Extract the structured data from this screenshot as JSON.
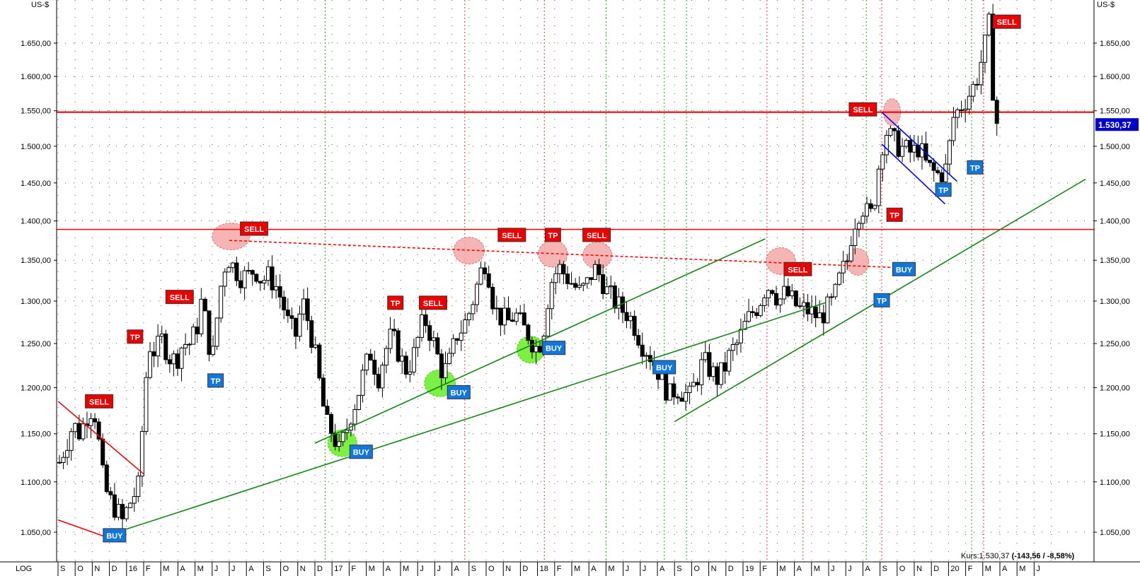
{
  "chart_data": {
    "type": "candlestick",
    "currency_label_left": "US-$",
    "currency_label_right": "US-$",
    "scale_label": "LOG",
    "y_log": true,
    "ylim": [
      1025,
      1700
    ],
    "y_ticks": [
      1050,
      1100,
      1150,
      1200,
      1250,
      1300,
      1350,
      1400,
      1450,
      1500,
      1550,
      1600,
      1650
    ],
    "y_tick_labels": [
      "1.050,00",
      "1.100,00",
      "1.150,00",
      "1.200,00",
      "1.250,00",
      "1.300,00",
      "1.350,00",
      "1.400,00",
      "1.450,00",
      "1.500,00",
      "1.550,00",
      "1.600,00",
      "1.650,00"
    ],
    "x_range_months": [
      0,
      62
    ],
    "months": [
      "S",
      "O",
      "N",
      "D",
      "16",
      "F",
      "M",
      "A",
      "M",
      "J",
      "J",
      "A",
      "S",
      "O",
      "N",
      "D",
      "17",
      "F",
      "M",
      "A",
      "M",
      "J",
      "J",
      "A",
      "S",
      "O",
      "N",
      "D",
      "18",
      "F",
      "M",
      "A",
      "M",
      "J",
      "J",
      "A",
      "S",
      "O",
      "N",
      "D",
      "19",
      "F",
      "M",
      "A",
      "M",
      "J",
      "J",
      "A",
      "S",
      "O",
      "N",
      "D",
      "20",
      "F",
      "M",
      "A",
      "M",
      "J"
    ],
    "month_index": [
      0,
      1,
      2,
      3,
      4,
      5,
      6,
      7,
      8,
      9,
      10,
      11,
      12,
      13,
      14,
      15,
      16,
      17,
      18,
      19,
      20,
      21,
      22,
      23,
      24,
      25,
      26,
      27,
      28,
      29,
      30,
      31,
      32,
      33,
      34,
      35,
      36,
      37,
      38,
      39,
      40,
      41,
      42,
      43,
      44,
      45,
      46,
      47,
      48,
      49,
      50,
      51,
      52,
      53,
      54,
      55,
      56,
      57
    ],
    "price_path": [
      [
        0.0,
        1120
      ],
      [
        0.4,
        1140
      ],
      [
        0.8,
        1160
      ],
      [
        1.2,
        1150
      ],
      [
        1.6,
        1170
      ],
      [
        2.0,
        1180
      ],
      [
        2.3,
        1140
      ],
      [
        2.6,
        1095
      ],
      [
        3.0,
        1080
      ],
      [
        3.4,
        1070
      ],
      [
        3.7,
        1060
      ],
      [
        4.0,
        1075
      ],
      [
        4.3,
        1085
      ],
      [
        4.6,
        1095
      ],
      [
        4.9,
        1170
      ],
      [
        5.2,
        1250
      ],
      [
        5.6,
        1240
      ],
      [
        6.0,
        1255
      ],
      [
        6.4,
        1235
      ],
      [
        6.8,
        1230
      ],
      [
        7.2,
        1250
      ],
      [
        7.6,
        1250
      ],
      [
        8.0,
        1265
      ],
      [
        8.3,
        1300
      ],
      [
        8.6,
        1270
      ],
      [
        8.9,
        1225
      ],
      [
        9.2,
        1280
      ],
      [
        9.5,
        1330
      ],
      [
        9.8,
        1355
      ],
      [
        10.2,
        1340
      ],
      [
        10.6,
        1330
      ],
      [
        11.0,
        1330
      ],
      [
        11.4,
        1340
      ],
      [
        11.8,
        1325
      ],
      [
        12.2,
        1330
      ],
      [
        12.6,
        1320
      ],
      [
        13.0,
        1300
      ],
      [
        13.4,
        1270
      ],
      [
        13.8,
        1260
      ],
      [
        14.2,
        1300
      ],
      [
        14.6,
        1270
      ],
      [
        15.0,
        1230
      ],
      [
        15.3,
        1190
      ],
      [
        15.6,
        1160
      ],
      [
        16.0,
        1150
      ],
      [
        16.3,
        1130
      ],
      [
        16.7,
        1150
      ],
      [
        17.0,
        1170
      ],
      [
        17.4,
        1190
      ],
      [
        17.8,
        1220
      ],
      [
        18.2,
        1240
      ],
      [
        18.6,
        1210
      ],
      [
        19.0,
        1240
      ],
      [
        19.4,
        1260
      ],
      [
        19.8,
        1240
      ],
      [
        20.2,
        1220
      ],
      [
        20.6,
        1230
      ],
      [
        21.0,
        1260
      ],
      [
        21.3,
        1280
      ],
      [
        21.7,
        1260
      ],
      [
        22.0,
        1240
      ],
      [
        22.4,
        1215
      ],
      [
        22.8,
        1230
      ],
      [
        23.2,
        1260
      ],
      [
        23.6,
        1270
      ],
      [
        24.0,
        1290
      ],
      [
        24.4,
        1320
      ],
      [
        24.8,
        1350
      ],
      [
        25.0,
        1340
      ],
      [
        25.4,
        1290
      ],
      [
        25.8,
        1280
      ],
      [
        26.2,
        1275
      ],
      [
        26.6,
        1285
      ],
      [
        27.0,
        1270
      ],
      [
        27.4,
        1260
      ],
      [
        27.8,
        1245
      ],
      [
        28.2,
        1255
      ],
      [
        28.5,
        1300
      ],
      [
        28.8,
        1330
      ],
      [
        29.2,
        1340
      ],
      [
        29.6,
        1330
      ],
      [
        30.0,
        1320
      ],
      [
        30.4,
        1310
      ],
      [
        30.8,
        1320
      ],
      [
        31.2,
        1340
      ],
      [
        31.6,
        1330
      ],
      [
        32.0,
        1310
      ],
      [
        32.4,
        1300
      ],
      [
        32.8,
        1290
      ],
      [
        33.2,
        1285
      ],
      [
        33.6,
        1270
      ],
      [
        34.0,
        1250
      ],
      [
        34.4,
        1240
      ],
      [
        34.8,
        1225
      ],
      [
        35.2,
        1210
      ],
      [
        35.6,
        1190
      ],
      [
        36.0,
        1200
      ],
      [
        36.4,
        1195
      ],
      [
        36.8,
        1190
      ],
      [
        37.2,
        1210
      ],
      [
        37.6,
        1230
      ],
      [
        38.0,
        1220
      ],
      [
        38.4,
        1210
      ],
      [
        38.8,
        1220
      ],
      [
        39.2,
        1240
      ],
      [
        39.6,
        1250
      ],
      [
        40.0,
        1270
      ],
      [
        40.4,
        1285
      ],
      [
        40.8,
        1295
      ],
      [
        41.2,
        1315
      ],
      [
        41.6,
        1320
      ],
      [
        42.0,
        1300
      ],
      [
        42.4,
        1310
      ],
      [
        42.8,
        1300
      ],
      [
        43.2,
        1290
      ],
      [
        43.6,
        1290
      ],
      [
        44.0,
        1285
      ],
      [
        44.4,
        1280
      ],
      [
        44.8,
        1290
      ],
      [
        45.2,
        1300
      ],
      [
        45.6,
        1330
      ],
      [
        46.0,
        1350
      ],
      [
        46.3,
        1390
      ],
      [
        46.6,
        1410
      ],
      [
        47.0,
        1420
      ],
      [
        47.3,
        1400
      ],
      [
        47.6,
        1430
      ],
      [
        48.0,
        1500
      ],
      [
        48.3,
        1520
      ],
      [
        48.6,
        1510
      ],
      [
        49.0,
        1500
      ],
      [
        49.4,
        1495
      ],
      [
        49.8,
        1490
      ],
      [
        50.2,
        1500
      ],
      [
        50.6,
        1475
      ],
      [
        51.0,
        1465
      ],
      [
        51.4,
        1460
      ],
      [
        51.8,
        1470
      ],
      [
        52.2,
        1540
      ],
      [
        52.6,
        1555
      ],
      [
        53.0,
        1570
      ],
      [
        53.3,
        1580
      ],
      [
        53.6,
        1600
      ],
      [
        54.0,
        1640
      ],
      [
        54.3,
        1680
      ],
      [
        54.6,
        1540
      ],
      [
        54.8,
        1530
      ]
    ],
    "horizontal_levels": [
      {
        "value": 1548,
        "color": "#ff0000",
        "width": 2.2
      },
      {
        "value": 1389,
        "color": "#ff0000",
        "width": 1.6
      }
    ],
    "trendlines": [
      {
        "from": [
          0.0,
          1185
        ],
        "to": [
          5.0,
          1108
        ],
        "color": "#ff0000",
        "width": 1.6,
        "dash": false
      },
      {
        "from": [
          0.0,
          1062
        ],
        "to": [
          2.7,
          1046
        ],
        "color": "#ff0000",
        "width": 1.6,
        "dash": false
      },
      {
        "from": [
          4.0,
          1053
        ],
        "to": [
          44.8,
          1298
        ],
        "color": "#118811",
        "width": 1.6,
        "dash": false
      },
      {
        "from": [
          15.0,
          1140
        ],
        "to": [
          41.3,
          1377
        ],
        "color": "#118811",
        "width": 1.6,
        "dash": false
      },
      {
        "from": [
          36.0,
          1163
        ],
        "to": [
          60.0,
          1455
        ],
        "color": "#118811",
        "width": 1.6,
        "dash": false
      },
      {
        "from": [
          10.0,
          1375
        ],
        "to": [
          50.0,
          1340
        ],
        "color": "#ff0000",
        "width": 1.6,
        "dash": true
      },
      {
        "from": [
          48.1,
          1548
        ],
        "to": [
          52.5,
          1452
        ],
        "color": "#0000ff",
        "width": 1.6,
        "dash": false
      },
      {
        "from": [
          48.1,
          1503
        ],
        "to": [
          51.8,
          1422
        ],
        "color": "#0000ff",
        "width": 1.6,
        "dash": false
      }
    ],
    "vertical_markers": [
      {
        "x": 15.6,
        "color": "#22aa22"
      },
      {
        "x": 23.75,
        "color": "#ff3333"
      },
      {
        "x": 28.4,
        "color": "#ff3333"
      },
      {
        "x": 32.0,
        "color": "#22aa22"
      },
      {
        "x": 35.4,
        "color": "#22aa22"
      },
      {
        "x": 36.7,
        "color": "#22aa22"
      },
      {
        "x": 41.4,
        "color": "#ff3333"
      },
      {
        "x": 43.5,
        "color": "#ff3333"
      },
      {
        "x": 47.2,
        "color": "#22aa22"
      },
      {
        "x": 48.1,
        "color": "#ff3333"
      },
      {
        "x": 53.35,
        "color": "#22aa22"
      },
      {
        "x": 54.05,
        "color": "#ff3333"
      }
    ],
    "highlight_ellipses": [
      {
        "x": 10.1,
        "y": 1380,
        "color": "#f4a8a8",
        "rx": 1.1
      },
      {
        "x": 24.0,
        "y": 1362,
        "color": "#f4a8a8",
        "rx": 0.9
      },
      {
        "x": 28.9,
        "y": 1358,
        "color": "#f4a8a8",
        "rx": 0.85
      },
      {
        "x": 31.5,
        "y": 1356,
        "color": "#f4a8a8",
        "rx": 0.85
      },
      {
        "x": 42.2,
        "y": 1349,
        "color": "#f4a8a8",
        "rx": 0.85
      },
      {
        "x": 46.7,
        "y": 1348,
        "color": "#f4a8a8",
        "rx": 0.65
      },
      {
        "x": 48.7,
        "y": 1548,
        "color": "#f4a8a8",
        "rx": 0.5
      },
      {
        "x": 16.6,
        "y": 1140,
        "color": "#66ee22",
        "rx": 0.85
      },
      {
        "x": 22.3,
        "y": 1205,
        "color": "#66ee22",
        "rx": 0.9
      },
      {
        "x": 27.6,
        "y": 1243,
        "color": "#66ee22",
        "rx": 0.8
      }
    ],
    "signals": [
      {
        "label": "SELL",
        "type": "sell",
        "x": 2.4,
        "y": 1185
      },
      {
        "label": "TP",
        "type": "sell",
        "x": 4.5,
        "y": 1258
      },
      {
        "label": "SELL",
        "type": "sell",
        "x": 7.1,
        "y": 1305
      },
      {
        "label": "SELL",
        "type": "sell",
        "x": 11.45,
        "y": 1390
      },
      {
        "label": "TP",
        "type": "sell",
        "x": 19.7,
        "y": 1298
      },
      {
        "label": "SELL",
        "type": "sell",
        "x": 21.9,
        "y": 1298
      },
      {
        "label": "SELL",
        "type": "sell",
        "x": 26.5,
        "y": 1382
      },
      {
        "label": "TP",
        "type": "sell",
        "x": 28.9,
        "y": 1382
      },
      {
        "label": "SELL",
        "type": "sell",
        "x": 31.45,
        "y": 1382
      },
      {
        "label": "SELL",
        "type": "sell",
        "x": 43.2,
        "y": 1339
      },
      {
        "label": "SELL",
        "type": "sell",
        "x": 47.0,
        "y": 1552
      },
      {
        "label": "TP",
        "type": "sell",
        "x": 48.85,
        "y": 1408
      },
      {
        "label": "SELL",
        "type": "sell",
        "x": 55.4,
        "y": 1683
      },
      {
        "label": "BUY",
        "type": "buy",
        "x": 3.3,
        "y": 1047
      },
      {
        "label": "TP",
        "type": "buy",
        "x": 9.2,
        "y": 1208
      },
      {
        "label": "BUY",
        "type": "buy",
        "x": 17.7,
        "y": 1131
      },
      {
        "label": "BUY",
        "type": "buy",
        "x": 23.4,
        "y": 1195
      },
      {
        "label": "BUY",
        "type": "buy",
        "x": 28.95,
        "y": 1245
      },
      {
        "label": "BUY",
        "type": "buy",
        "x": 35.4,
        "y": 1223
      },
      {
        "label": "BUY",
        "type": "buy",
        "x": 49.4,
        "y": 1339
      },
      {
        "label": "TP",
        "type": "buy",
        "x": 48.1,
        "y": 1301
      },
      {
        "label": "TP",
        "type": "buy",
        "x": 51.7,
        "y": 1441
      },
      {
        "label": "TP",
        "type": "buy",
        "x": 53.55,
        "y": 1471
      }
    ],
    "last_price_label": "1.530,37",
    "last_price_value": 1530.37
  },
  "footer": {
    "kurs_prefix": "Kurs:1.530,37 ",
    "kurs_change": "(-143,56 / -8,58%)"
  }
}
